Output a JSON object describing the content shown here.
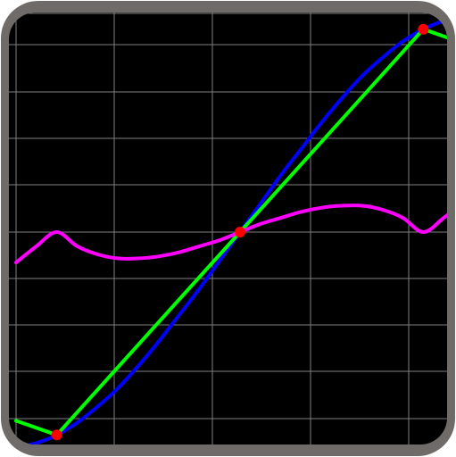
{
  "colors": {
    "bezel": "#6f6b69",
    "screen": "#000000",
    "grid": "#7f7f7f",
    "blue_curve": "#0000ff",
    "green_line": "#00ff00",
    "magenta_curve": "#ff00ff",
    "points": "#ff0000"
  },
  "chart_data": {
    "type": "line",
    "title": "",
    "xlabel": "",
    "ylabel": "",
    "grid": true,
    "legend": "none",
    "xlim": [
      -1.1,
      1.1
    ],
    "ylim": [
      -1.1,
      1.1
    ],
    "points": [
      {
        "x": -0.9,
        "y": -1.0
      },
      {
        "x": 0.0,
        "y": 0.0
      },
      {
        "x": 0.9,
        "y": 1.0
      }
    ],
    "series": [
      {
        "color": "#0000ff",
        "x": [
          -1.1,
          -1.0,
          -0.9,
          -0.8,
          -0.7,
          -0.6,
          -0.5,
          -0.4,
          -0.3,
          -0.2,
          -0.1,
          0.0,
          0.1,
          0.2,
          0.3,
          0.4,
          0.5,
          0.6,
          0.7,
          0.8,
          0.9,
          1.0,
          1.1
        ],
        "y": [
          -1.06,
          -1.04,
          -1.0,
          -0.94,
          -0.86,
          -0.77,
          -0.66,
          -0.54,
          -0.41,
          -0.28,
          -0.14,
          0.0,
          0.14,
          0.28,
          0.41,
          0.54,
          0.66,
          0.77,
          0.86,
          0.94,
          1.0,
          1.04,
          1.06
        ]
      },
      {
        "color": "#00ff00",
        "x": [
          -1.1,
          -0.9,
          0.9,
          1.1
        ],
        "y": [
          -0.93,
          -1.0,
          1.0,
          0.93
        ]
      },
      {
        "color": "#ff00ff",
        "x": [
          -1.1,
          -1.0,
          -0.9,
          -0.8,
          -0.7,
          -0.6,
          -0.5,
          -0.4,
          -0.3,
          -0.2,
          -0.1,
          0.0,
          0.1,
          0.2,
          0.3,
          0.4,
          0.5,
          0.6,
          0.7,
          0.8,
          0.9,
          1.0,
          1.1
        ],
        "y": [
          -0.15,
          -0.07,
          0.0,
          -0.07,
          -0.11,
          -0.13,
          -0.13,
          -0.12,
          -0.1,
          -0.07,
          -0.04,
          0.0,
          0.04,
          0.07,
          0.1,
          0.12,
          0.13,
          0.13,
          0.11,
          0.07,
          0.0,
          0.07,
          0.15
        ]
      }
    ]
  }
}
